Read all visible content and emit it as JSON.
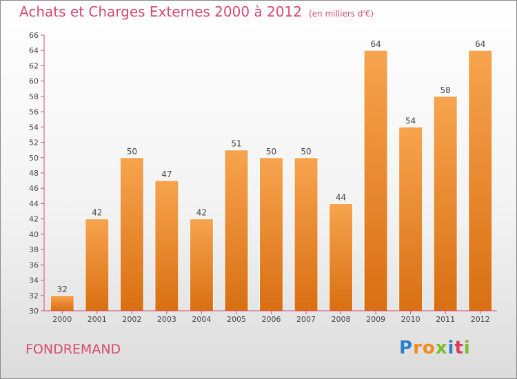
{
  "title": "Achats et Charges Externes 2000 à 2012",
  "subtitle": "(en milliers d'€)",
  "place": "FONDREMAND",
  "logo": {
    "letters": [
      {
        "ch": "P",
        "color": "#2a7fd0"
      },
      {
        "ch": "r",
        "color": "#f08a1e"
      },
      {
        "ch": "o",
        "color": "#f08a1e"
      },
      {
        "ch": "x",
        "color": "#7dbd2c"
      },
      {
        "ch": "i",
        "color": "#2a7fd0"
      },
      {
        "ch": "t",
        "color": "#e03a57"
      },
      {
        "ch": "i",
        "color": "#7dbd2c"
      }
    ]
  },
  "chart_data": {
    "type": "bar",
    "categories": [
      "2000",
      "2001",
      "2002",
      "2003",
      "2004",
      "2005",
      "2006",
      "2007",
      "2008",
      "2009",
      "2010",
      "2011",
      "2012"
    ],
    "values": [
      32,
      42,
      50,
      47,
      42,
      51,
      50,
      50,
      44,
      64,
      54,
      58,
      64
    ],
    "data_labels": [
      "32",
      "42",
      "50",
      "47",
      "42",
      "51",
      "50",
      "50",
      "44",
      "64",
      "54",
      "58",
      "64"
    ],
    "ylim": [
      30,
      66
    ],
    "yticks": [
      30,
      32,
      34,
      36,
      38,
      40,
      42,
      44,
      46,
      48,
      50,
      52,
      54,
      56,
      58,
      60,
      62,
      64,
      66
    ],
    "grid": false,
    "xlabel": "",
    "ylabel": "",
    "bar_color_top": "#f7a44e",
    "bar_color_bottom": "#d96f12",
    "axis_color": "#d64a6e",
    "text_color": "#444444"
  }
}
